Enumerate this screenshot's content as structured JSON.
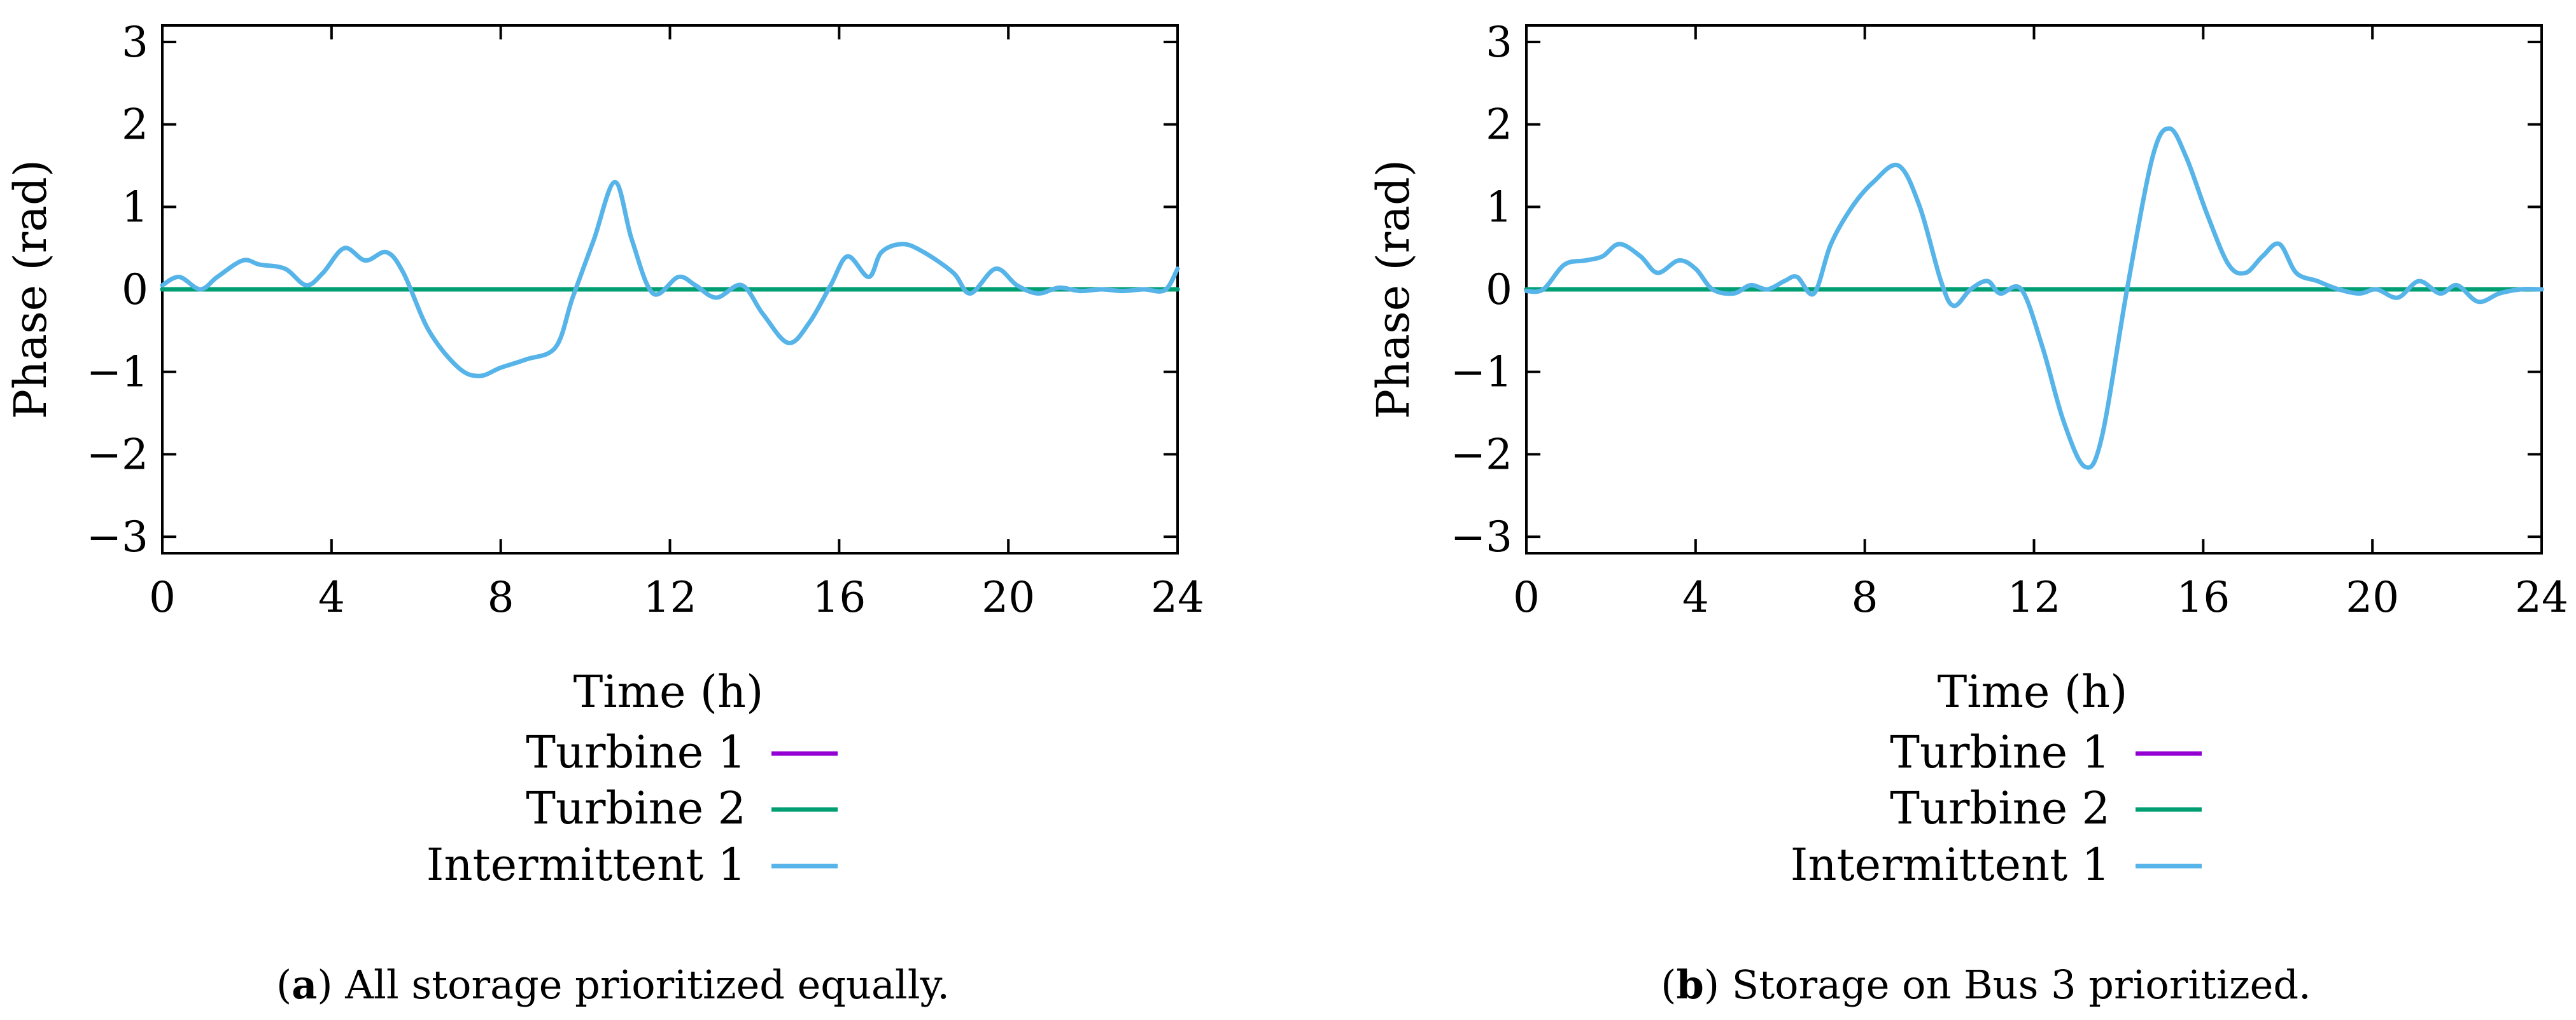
{
  "chart_data": [
    {
      "type": "line",
      "panel": "a",
      "xlabel": "Time (h)",
      "ylabel": "Phase (rad)",
      "xlim": [
        0,
        24
      ],
      "ylim": [
        -3.2,
        3.2
      ],
      "xticks": [
        0,
        4,
        8,
        12,
        16,
        20,
        24
      ],
      "yticks": [
        -3,
        -2,
        -1,
        0,
        1,
        2,
        3
      ],
      "xtick_labels": [
        "0",
        "4",
        "8",
        "12",
        "16",
        "20",
        "24"
      ],
      "ytick_labels": [
        "−3",
        "−2",
        "−1",
        "0",
        "1",
        "2",
        "3"
      ],
      "caption_letter": "a",
      "caption_text": "All storage prioritized equally.",
      "series": [
        {
          "name": "Turbine 1",
          "color": "#9400d3",
          "x": [
            0,
            24
          ],
          "y": [
            0,
            0
          ]
        },
        {
          "name": "Turbine 2",
          "color": "#009e73",
          "x": [
            0,
            24
          ],
          "y": [
            0,
            0
          ]
        },
        {
          "name": "Intermittent 1",
          "color": "#56b4e9",
          "x": [
            0,
            0.4,
            0.9,
            1.3,
            1.9,
            2.3,
            2.9,
            3.4,
            3.8,
            4.3,
            4.8,
            5.3,
            5.7,
            6.3,
            7.0,
            7.5,
            8.0,
            8.6,
            9.3,
            9.7,
            10.2,
            10.7,
            11.1,
            11.6,
            12.2,
            12.6,
            13.1,
            13.7,
            14.2,
            14.8,
            15.3,
            15.8,
            16.2,
            16.7,
            17.0,
            17.5,
            18.0,
            18.7,
            19.1,
            19.7,
            20.2,
            20.7,
            21.2,
            21.7,
            22.2,
            22.7,
            23.2,
            23.7,
            24.0
          ],
          "y": [
            0.05,
            0.15,
            0.0,
            0.15,
            0.35,
            0.3,
            0.25,
            0.05,
            0.2,
            0.5,
            0.35,
            0.45,
            0.2,
            -0.5,
            -0.95,
            -1.05,
            -0.95,
            -0.85,
            -0.7,
            -0.1,
            0.6,
            1.3,
            0.6,
            -0.05,
            0.15,
            0.05,
            -0.1,
            0.05,
            -0.3,
            -0.65,
            -0.4,
            0.05,
            0.4,
            0.15,
            0.45,
            0.55,
            0.45,
            0.2,
            -0.05,
            0.25,
            0.05,
            -0.05,
            0.02,
            -0.02,
            0.0,
            -0.02,
            0.0,
            -0.01,
            0.25
          ]
        }
      ]
    },
    {
      "type": "line",
      "panel": "b",
      "xlabel": "Time (h)",
      "ylabel": "Phase (rad)",
      "xlim": [
        0,
        24
      ],
      "ylim": [
        -3.2,
        3.2
      ],
      "xticks": [
        0,
        4,
        8,
        12,
        16,
        20,
        24
      ],
      "yticks": [
        -3,
        -2,
        -1,
        0,
        1,
        2,
        3
      ],
      "xtick_labels": [
        "0",
        "4",
        "8",
        "12",
        "16",
        "20",
        "24"
      ],
      "ytick_labels": [
        "−3",
        "−2",
        "−1",
        "0",
        "1",
        "2",
        "3"
      ],
      "caption_letter": "b",
      "caption_text": "Storage on Bus 3 prioritized.",
      "series": [
        {
          "name": "Turbine 1",
          "color": "#9400d3",
          "x": [
            0,
            24
          ],
          "y": [
            0,
            0
          ]
        },
        {
          "name": "Turbine 2",
          "color": "#009e73",
          "x": [
            0,
            24
          ],
          "y": [
            0,
            0
          ]
        },
        {
          "name": "Intermittent 1",
          "color": "#56b4e9",
          "x": [
            0,
            0.4,
            0.9,
            1.4,
            1.8,
            2.2,
            2.7,
            3.1,
            3.6,
            4.0,
            4.4,
            4.9,
            5.3,
            5.7,
            6.1,
            6.4,
            6.8,
            7.2,
            7.7,
            8.2,
            8.8,
            9.3,
            9.8,
            10.1,
            10.5,
            10.9,
            11.2,
            11.7,
            12.2,
            12.7,
            13.2,
            13.6,
            14.2,
            14.8,
            15.2,
            15.6,
            16.1,
            16.6,
            17.0,
            17.4,
            17.8,
            18.2,
            18.7,
            19.2,
            19.7,
            20.1,
            20.6,
            21.1,
            21.6,
            22.0,
            22.5,
            23.0,
            23.5,
            24.0
          ],
          "y": [
            -0.02,
            0.0,
            0.3,
            0.35,
            0.4,
            0.55,
            0.4,
            0.2,
            0.35,
            0.25,
            0.0,
            -0.05,
            0.05,
            0.0,
            0.1,
            0.15,
            -0.05,
            0.55,
            1.0,
            1.3,
            1.5,
            1.0,
            0.1,
            -0.2,
            0.0,
            0.1,
            -0.05,
            0.0,
            -0.7,
            -1.6,
            -2.15,
            -1.8,
            0.0,
            1.6,
            1.95,
            1.6,
            0.9,
            0.3,
            0.2,
            0.4,
            0.55,
            0.2,
            0.1,
            0.0,
            -0.05,
            0.0,
            -0.1,
            0.1,
            -0.05,
            0.05,
            -0.15,
            -0.05,
            0.0,
            0.0
          ]
        }
      ]
    }
  ]
}
